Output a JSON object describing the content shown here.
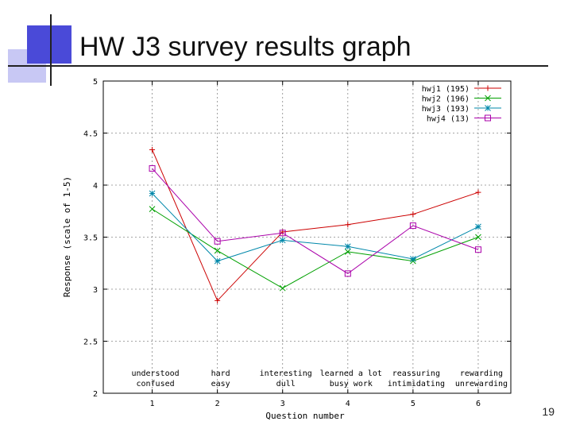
{
  "slide": {
    "title": "HW J3 survey results graph",
    "page_number": "19"
  },
  "chart_data": {
    "type": "line",
    "title": "HW J3 survey results graph",
    "xlabel": "Question number",
    "ylabel": "Response (scale of 1-5)",
    "x": [
      1,
      2,
      3,
      4,
      5,
      6
    ],
    "xlim": [
      0.25,
      6.5
    ],
    "ylim": [
      2,
      5
    ],
    "grid": true,
    "legend_position": "top-right",
    "y_ticks": [
      "2",
      "2.5",
      "3",
      "3.5",
      "4",
      "4.5",
      "5"
    ],
    "x_ticks": [
      "1",
      "2",
      "3",
      "4",
      "5",
      "6"
    ],
    "category_labels": [
      {
        "top": "understood",
        "bottom": "confused"
      },
      {
        "top": "hard",
        "bottom": "easy"
      },
      {
        "top": "interesting",
        "bottom": "dull"
      },
      {
        "top": "learned a lot",
        "bottom": "busy work"
      },
      {
        "top": "reassuring",
        "bottom": "intimidating"
      },
      {
        "top": "rewarding",
        "bottom": "unrewarding"
      }
    ],
    "series": [
      {
        "name": "hwj1 (195)",
        "color": "#cc0000",
        "marker": "plus",
        "values": [
          4.34,
          2.89,
          3.55,
          3.62,
          3.72,
          3.93
        ]
      },
      {
        "name": "hwj2 (196)",
        "color": "#00a000",
        "marker": "cross",
        "values": [
          3.77,
          3.37,
          3.01,
          3.36,
          3.27,
          3.5
        ]
      },
      {
        "name": "hwj3 (193)",
        "color": "#0088aa",
        "marker": "star",
        "values": [
          3.92,
          3.27,
          3.47,
          3.41,
          3.29,
          3.6
        ]
      },
      {
        "name": "hwj4 (13)",
        "color": "#aa00aa",
        "marker": "square",
        "values": [
          4.16,
          3.46,
          3.54,
          3.15,
          3.61,
          3.38
        ]
      }
    ]
  }
}
